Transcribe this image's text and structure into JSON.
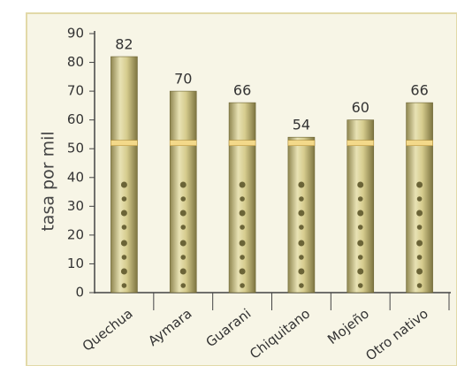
{
  "chart_data": {
    "type": "bar",
    "y_label": "tasa por mil",
    "categories": [
      "Quechua",
      "Aymara",
      "Guarani",
      "Chiquitano",
      "Mojeño",
      "Otro nativo"
    ],
    "values": [
      82,
      70,
      66,
      54,
      60,
      66
    ],
    "color": "#d9cf93",
    "ylim": [
      0,
      90
    ],
    "yticks": [
      0,
      10,
      20,
      30,
      40,
      50,
      60,
      70,
      80,
      90
    ],
    "grid": false
  }
}
